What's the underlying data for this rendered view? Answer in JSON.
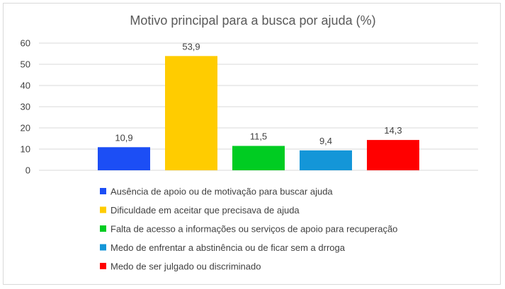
{
  "chart_data": {
    "type": "bar",
    "title": "Motivo principal para a busca por ajuda (%)",
    "categories": [
      "Ausência de apoio ou de motivação para buscar ajuda",
      "Dificuldade em aceitar que precisava de ajuda",
      "Falta de acesso a informações ou serviços de apoio para recuperação",
      "Medo de enfrentar a abstinência ou de ficar sem a drroga",
      "Medo de ser julgado ou discriminado"
    ],
    "values": [
      10.9,
      53.9,
      11.5,
      9.4,
      14.3
    ],
    "value_labels": [
      "10,9",
      "53,9",
      "11,5",
      "9,4",
      "14,3"
    ],
    "colors": [
      "#1c4ef5",
      "#ffcc00",
      "#00cc22",
      "#1496d8",
      "#ff0000"
    ],
    "yticks": [
      "0",
      "10",
      "20",
      "30",
      "40",
      "50",
      "60"
    ],
    "ylim": [
      0,
      60
    ],
    "xlabel": "",
    "ylabel": "",
    "grid": true,
    "legend_position": "bottom"
  }
}
